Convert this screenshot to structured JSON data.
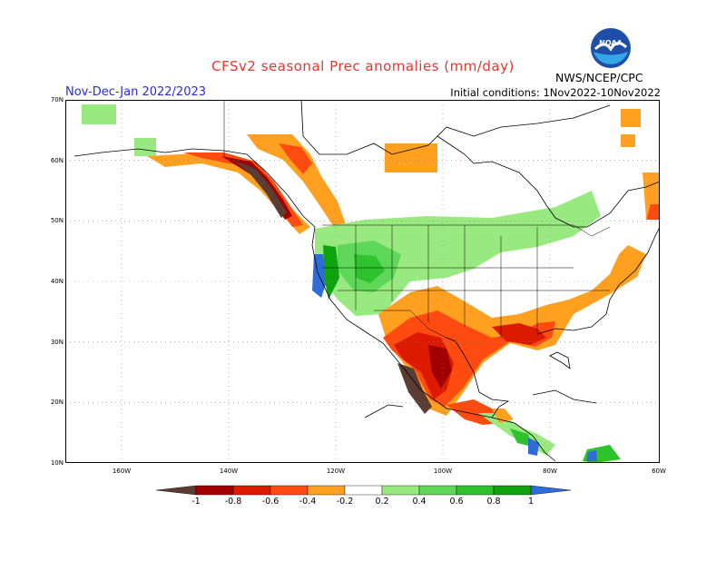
{
  "header": {
    "title": "CFSv2 seasonal Prec anomalies (mm/day)",
    "season": "Nov-Dec-Jan 2022/2023",
    "initial_conditions": "Initial conditions: 1Nov2022-10Nov2022",
    "org": "NWS/NCEP/CPC",
    "logo_text": "NOAA"
  },
  "map": {
    "y_ticks": [
      "70N",
      "60N",
      "50N",
      "40N",
      "30N",
      "20N",
      "10N"
    ],
    "x_ticks": [
      "160W",
      "140W",
      "120W",
      "100W",
      "80W",
      "60W"
    ]
  },
  "colorbar": {
    "labels": [
      "-1",
      "-0.8",
      "-0.6",
      "-0.4",
      "-0.2",
      "0.2",
      "0.4",
      "0.6",
      "0.8",
      "1"
    ],
    "colors": {
      "lt_m1": "#5a3c32",
      "m1_m08": "#a00000",
      "m08_m06": "#dd1a00",
      "m06_m04": "#ff4a10",
      "m04_m02": "#ffa020",
      "m02_02": "#ffffff",
      "p02_04": "#98ea80",
      "p04_06": "#5fd85a",
      "p06_08": "#2ec22e",
      "p08_1": "#0ea20e",
      "gt_1": "#2f6cd8"
    }
  }
}
